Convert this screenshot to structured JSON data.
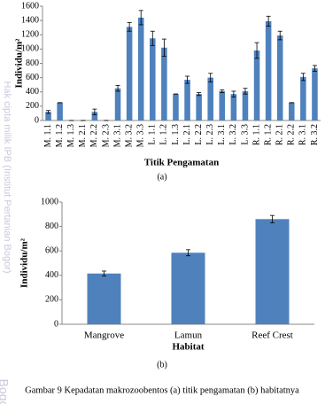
{
  "chart_data": [
    {
      "type": "bar",
      "y_label": "Individu/m²",
      "x_label": "Titik Pengamatan",
      "categories": [
        "M. 1.1",
        "M. 1.2",
        "M. 1.3",
        "M. 2.1",
        "M. 2.2",
        "M. 2.3",
        "M. 3.1",
        "M. 3.2",
        "M. 3.3",
        "L. 1.1",
        "L. 1.2",
        "L. 1.3",
        "L. 2.1",
        "L. 2.2",
        "L. 2.3",
        "L. 3.1",
        "L. 3.2",
        "L. 3.3",
        "R. 1.1",
        "R. 1.2",
        "R. 2.1",
        "R. 2.2",
        "R. 3.1",
        "R. 3.2"
      ],
      "values": [
        120,
        250,
        0,
        0,
        120,
        0,
        450,
        1310,
        1440,
        1150,
        1020,
        370,
        570,
        370,
        600,
        410,
        370,
        410,
        980,
        1390,
        1190,
        250,
        610,
        730
      ],
      "errors": [
        20,
        0,
        0,
        0,
        40,
        0,
        40,
        60,
        100,
        100,
        120,
        0,
        50,
        20,
        60,
        20,
        40,
        40,
        110,
        70,
        60,
        0,
        50,
        40
      ],
      "color": "#4f81bd",
      "ylim": [
        0,
        1600
      ],
      "yticks": [
        0,
        200,
        400,
        600,
        800,
        1000,
        1200,
        1400,
        1600
      ],
      "caption": "(a)"
    },
    {
      "type": "bar",
      "y_label": "Individu/m²",
      "x_label": "Habitat",
      "categories": [
        "Mangrove",
        "Lamun",
        "Reef Crest"
      ],
      "values": [
        415,
        585,
        860
      ],
      "errors": [
        20,
        25,
        30
      ],
      "color": "#4f81bd",
      "ylim": [
        0,
        1000
      ],
      "yticks": [
        0,
        200,
        400,
        600,
        800,
        1000
      ],
      "caption": "(b)"
    }
  ],
  "figure_caption": "Gambar 9 Kepadatan makrozoobentos (a) titik pengamatan (b) habitatnya",
  "watermark": "Hak cipta milik IPB (Institut Pertanian Bogor)",
  "watermark_corner": "Bogo"
}
